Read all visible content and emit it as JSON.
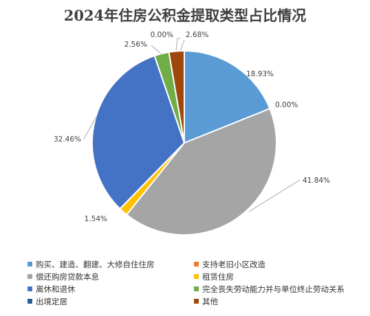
{
  "chart_data": {
    "type": "pie",
    "title": "2024年住房公积金提取类型占比情况",
    "legend_position": "bottom",
    "slices": [
      {
        "name": "购买、建造、翻建、大修自住住房",
        "value": 18.93,
        "label": "18.93%",
        "color": "#5b9bd5"
      },
      {
        "name": "支持老旧小区改造",
        "value": 0.0,
        "label": "0.00%",
        "color": "#ed7d31"
      },
      {
        "name": "偿还购房贷款本息",
        "value": 41.84,
        "label": "41.84%",
        "color": "#a5a5a5"
      },
      {
        "name": "租赁住房",
        "value": 1.54,
        "label": "1.54%",
        "color": "#ffc000"
      },
      {
        "name": "离休和退休",
        "value": 32.46,
        "label": "32.46%",
        "color": "#4472c4"
      },
      {
        "name": "完全丧失劳动能力并与单位终止劳动关系",
        "value": 2.56,
        "label": "2.56%",
        "color": "#70ad47"
      },
      {
        "name": "出境定居",
        "value": 0.0,
        "label": "0.00%",
        "color": "#255e91"
      },
      {
        "name": "其他",
        "value": 2.68,
        "label": "2.68%",
        "color": "#9e480e"
      }
    ]
  }
}
